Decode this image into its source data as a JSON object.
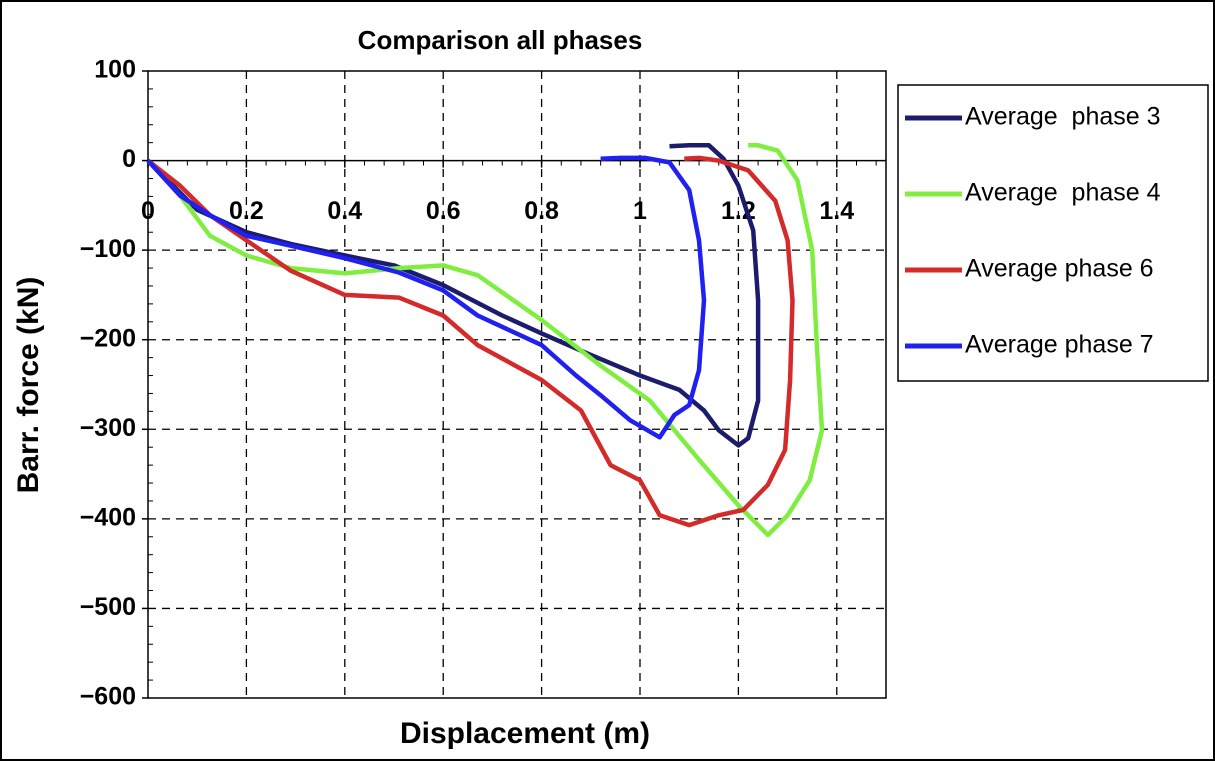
{
  "chart_data": {
    "type": "line",
    "title": "Comparison all phases",
    "x_label": "Displacement (m)",
    "y_label": "Barr. force (kN)",
    "xlim": [
      0,
      1.5
    ],
    "xticks": [
      0,
      0.2,
      0.4,
      0.6,
      0.8,
      1,
      1.2,
      1.4
    ],
    "ylim": [
      -600,
      100
    ],
    "yticks": [
      {
        "value": -600,
        "label": "−600"
      },
      {
        "value": -500,
        "label": "−500"
      },
      {
        "value": -400,
        "label": "−400"
      },
      {
        "value": -300,
        "label": "−300"
      },
      {
        "value": -200,
        "label": "−200"
      },
      {
        "value": -100,
        "label": "−100"
      },
      0,
      100
    ],
    "grid": true,
    "legend": "right",
    "series": [
      {
        "name": "Average  phase 3",
        "color": "#1c1c6c",
        "x": [
          0,
          0.1,
          0.2,
          0.29,
          0.4,
          0.5,
          0.6,
          0.72,
          0.8,
          0.9,
          1.0,
          1.08,
          1.13,
          1.16,
          1.2,
          1.22,
          1.24,
          1.24,
          1.23,
          1.2,
          1.17,
          1.14,
          1.1,
          1.06
        ],
        "values": [
          0,
          -55,
          -80,
          -93,
          -106,
          -117,
          -139,
          -173,
          -193,
          -217,
          -240,
          -256,
          -279,
          -301,
          -318,
          -310,
          -268,
          -156,
          -78,
          -28,
          2,
          17,
          17,
          16
        ]
      },
      {
        "name": "Average  phase 4",
        "color": "#80ee40",
        "x": [
          0,
          0.065,
          0.126,
          0.2,
          0.29,
          0.4,
          0.51,
          0.6,
          0.67,
          0.8,
          0.92,
          1.02,
          1.12,
          1.2,
          1.26,
          1.3,
          1.345,
          1.37,
          1.36,
          1.35,
          1.32,
          1.28,
          1.24,
          1.22
        ],
        "values": [
          0,
          -39,
          -84,
          -106,
          -120,
          -126,
          -120,
          -117,
          -128,
          -178,
          -229,
          -268,
          -334,
          -385,
          -418,
          -396,
          -357,
          -301,
          -212,
          -100,
          -22,
          11,
          17,
          17
        ]
      },
      {
        "name": "Average phase 6",
        "color": "#d42a2a",
        "x": [
          0,
          0.065,
          0.126,
          0.2,
          0.29,
          0.4,
          0.51,
          0.6,
          0.67,
          0.8,
          0.88,
          0.94,
          1.0,
          1.04,
          1.1,
          1.16,
          1.21,
          1.26,
          1.295,
          1.305,
          1.31,
          1.3,
          1.275,
          1.22,
          1.16,
          1.12,
          1.09
        ],
        "values": [
          0,
          -28,
          -61,
          -89,
          -123,
          -150,
          -153,
          -173,
          -206,
          -245,
          -279,
          -340,
          -357,
          -396,
          -407,
          -396,
          -390,
          -362,
          -323,
          -245,
          -156,
          -89,
          -45,
          -11,
          0,
          3,
          2
        ]
      },
      {
        "name": "Average phase 7",
        "color": "#2020f0",
        "x": [
          0,
          0.065,
          0.126,
          0.2,
          0.29,
          0.4,
          0.51,
          0.6,
          0.67,
          0.8,
          0.87,
          0.92,
          0.98,
          1.04,
          1.07,
          1.1,
          1.12,
          1.13,
          1.12,
          1.1,
          1.06,
          1.01,
          0.96,
          0.92
        ],
        "values": [
          0,
          -39,
          -61,
          -84,
          -95,
          -109,
          -125,
          -145,
          -173,
          -206,
          -240,
          -262,
          -290,
          -309,
          -284,
          -273,
          -234,
          -156,
          -89,
          -33,
          -2,
          3,
          3,
          2
        ]
      }
    ]
  }
}
